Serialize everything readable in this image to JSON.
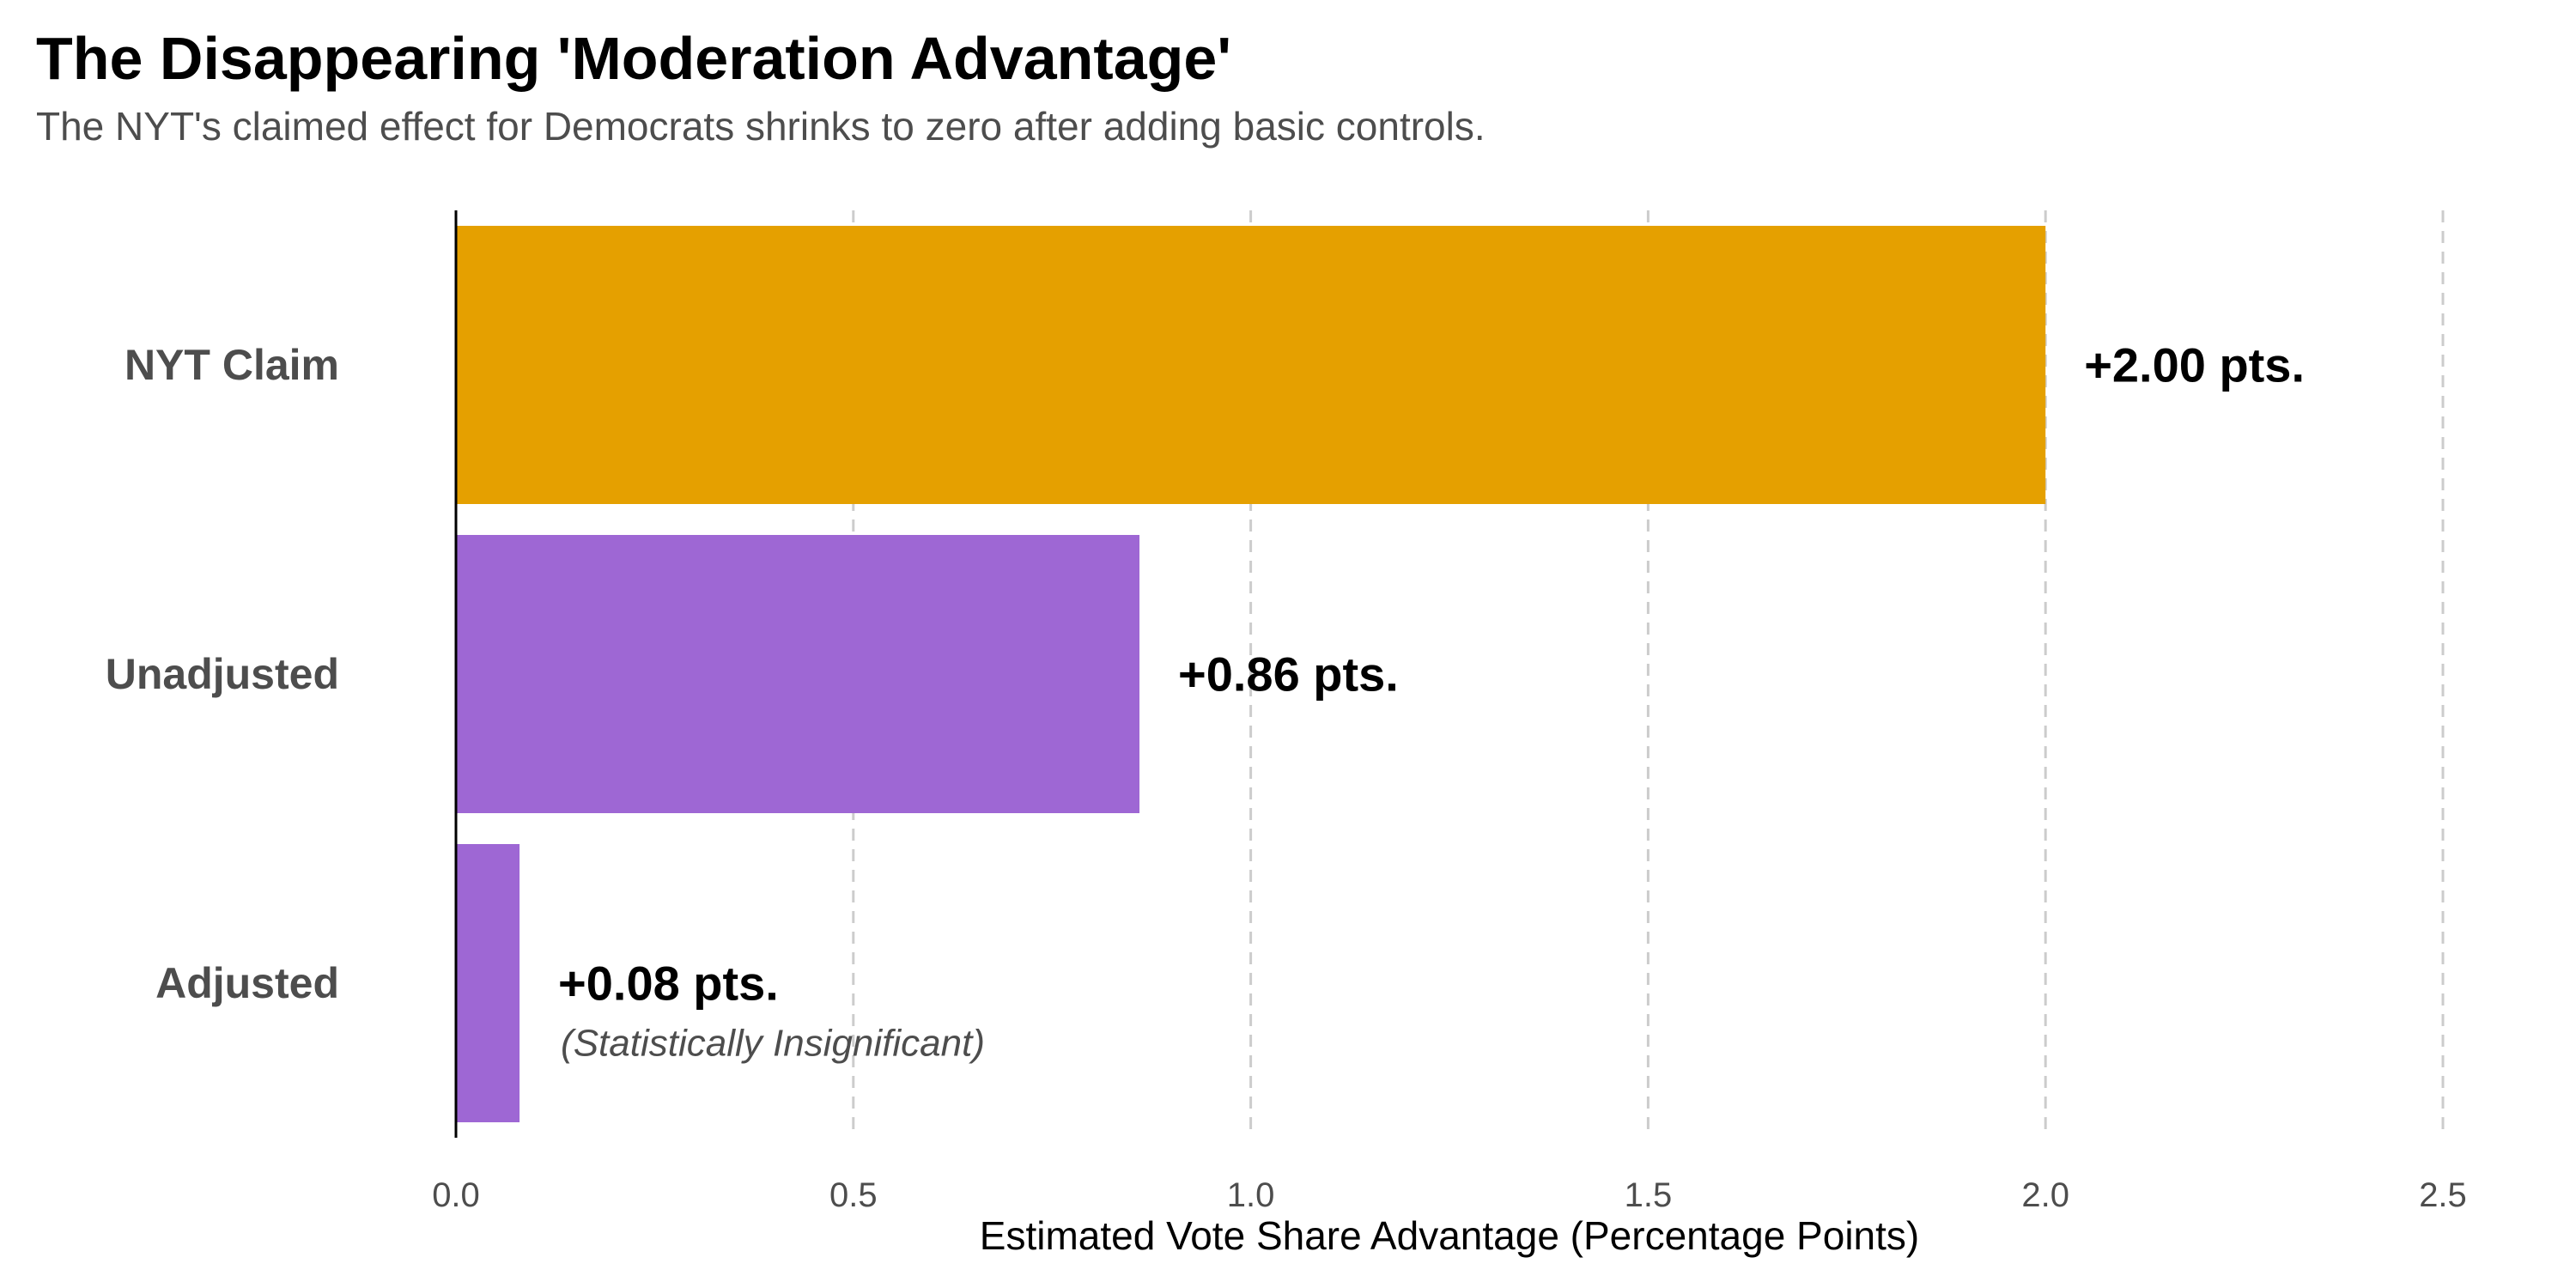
{
  "chart_data": {
    "type": "bar",
    "orientation": "horizontal",
    "title": "The Disappearing 'Moderation Advantage'",
    "subtitle": "The NYT's claimed effect for Democrats shrinks to zero after adding basic controls.",
    "xlabel": "Estimated Vote Share Advantage (Percentage Points)",
    "ylabel": "",
    "xlim": [
      0,
      2.5
    ],
    "x_ticks": [
      "0.0",
      "0.5",
      "1.0",
      "1.5",
      "2.0",
      "2.5"
    ],
    "grid": "vertical dashed",
    "legend": "none",
    "categories": [
      "NYT Claim",
      "Unadjusted",
      "Adjusted"
    ],
    "values": [
      2.0,
      0.86,
      0.08
    ],
    "colors": [
      "#e5a000",
      "#9e67d4",
      "#9e67d4"
    ],
    "data_labels": [
      "+2.00 pts.",
      "+0.86 pts.",
      "+0.08 pts."
    ],
    "annotations": [
      {
        "category": "Adjusted",
        "text": "(Statistically Insignificant)"
      }
    ]
  }
}
